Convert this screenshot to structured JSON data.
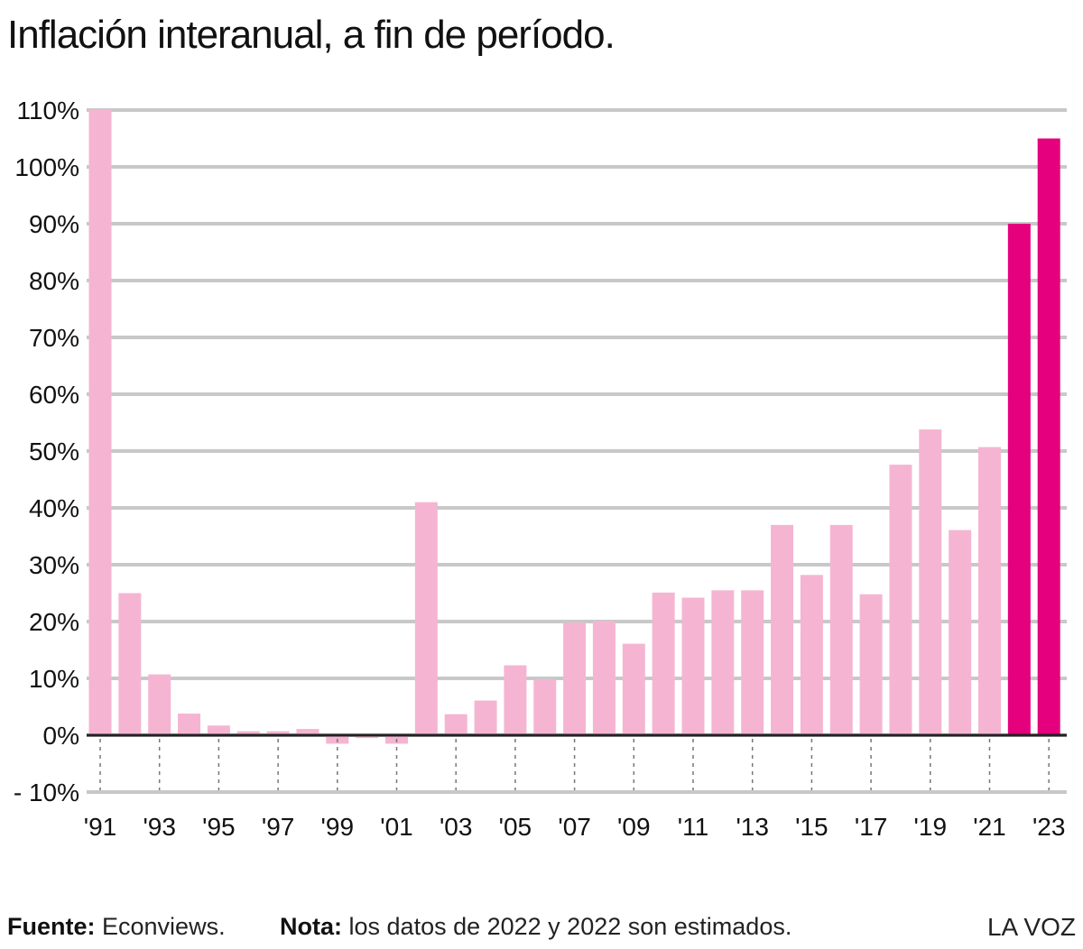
{
  "title": "Inflación interanual, a fin de período.",
  "footer": {
    "source_label": "Fuente:",
    "source_value": "Econviews.",
    "note_label": "Nota:",
    "note_value": "los datos de 2022 y 2022 son estimados.",
    "brand": "LA VOZ"
  },
  "colors": {
    "actual": "#f5b5d2",
    "estimated": "#e5007e",
    "grid": "#c8c8c8",
    "text": "#111111"
  },
  "chart_data": {
    "type": "bar",
    "title": "Inflación interanual, a fin de período.",
    "xlabel": "",
    "ylabel": "",
    "ylim": [
      -10,
      110
    ],
    "yticks": [
      110,
      100,
      90,
      80,
      70,
      60,
      50,
      40,
      30,
      20,
      10,
      0,
      -10
    ],
    "ytick_labels": [
      "110%",
      "100%",
      "90%",
      "80%",
      "70%",
      "60%",
      "50%",
      "40%",
      "30%",
      "20%",
      "10%",
      "0%",
      "- 10%"
    ],
    "xtick_labels": [
      "'91",
      "'93",
      "'95",
      "'97",
      "'99",
      "'01",
      "'03",
      "'05",
      "'07",
      "'09",
      "'11",
      "'13",
      "'15",
      "'17",
      "'19",
      "'21",
      "'23"
    ],
    "grid": true,
    "categories": [
      "1991",
      "1992",
      "1993",
      "1994",
      "1995",
      "1996",
      "1997",
      "1998",
      "1999",
      "2000",
      "2001",
      "2002",
      "2003",
      "2004",
      "2005",
      "2006",
      "2007",
      "2008",
      "2009",
      "2010",
      "2011",
      "2012",
      "2013",
      "2014",
      "2015",
      "2016",
      "2017",
      "2018",
      "2019",
      "2020",
      "2021",
      "2022",
      "2023"
    ],
    "values": [
      110,
      25,
      10.7,
      3.8,
      1.7,
      0.7,
      0.7,
      1.1,
      -1.5,
      -0.5,
      -1.5,
      41,
      3.7,
      6.1,
      12.3,
      9.8,
      19.8,
      20.1,
      16.1,
      25.1,
      24.2,
      25.5,
      25.5,
      37,
      28.2,
      37,
      24.8,
      47.6,
      53.8,
      36.1,
      50.7,
      90,
      105
    ],
    "estimated": [
      false,
      false,
      false,
      false,
      false,
      false,
      false,
      false,
      false,
      false,
      false,
      false,
      false,
      false,
      false,
      false,
      false,
      false,
      false,
      false,
      false,
      false,
      false,
      false,
      false,
      false,
      false,
      false,
      false,
      false,
      false,
      true,
      true
    ]
  }
}
